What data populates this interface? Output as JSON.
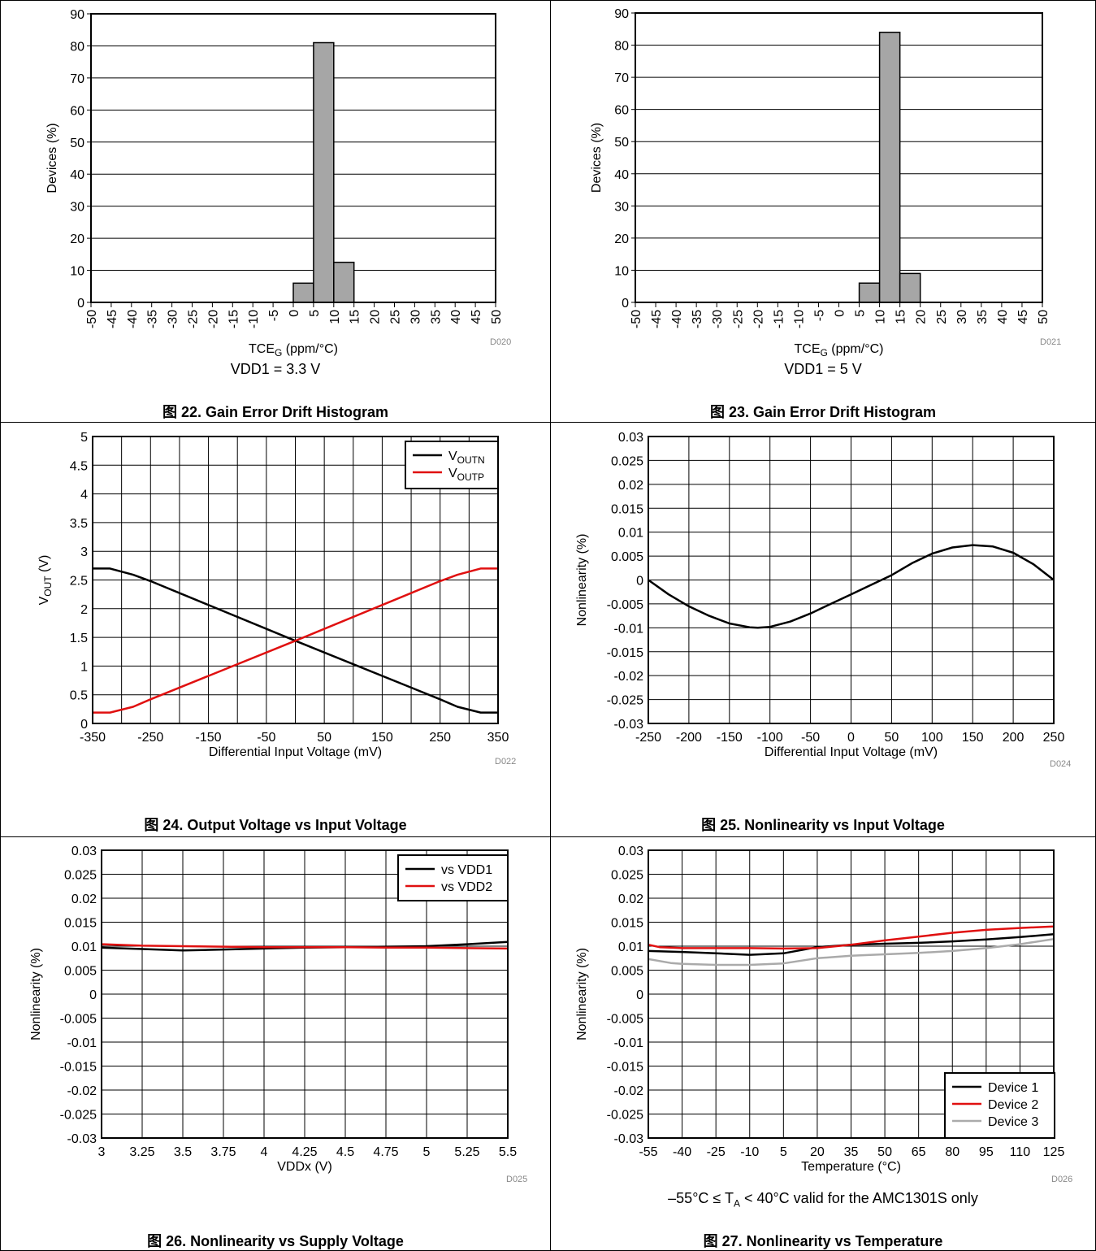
{
  "charts": [
    {
      "id": "fig22",
      "caption": "图 22. Gain Error Drift Histogram",
      "condition": "VDD1 = 3.3 V",
      "code": "D020"
    },
    {
      "id": "fig23",
      "caption": "图 23. Gain Error Drift Histogram",
      "condition": "VDD1 = 5 V",
      "code": "D021"
    },
    {
      "id": "fig24",
      "caption": "图 24. Output Voltage vs Input Voltage",
      "condition": "",
      "code": "D022"
    },
    {
      "id": "fig25",
      "caption": "图 25. Nonlinearity vs Input Voltage",
      "condition": "",
      "code": "D024"
    },
    {
      "id": "fig26",
      "caption": "图 26. Nonlinearity vs Supply Voltage",
      "condition": "",
      "code": "D025"
    },
    {
      "id": "fig27",
      "caption": "图 27. Nonlinearity vs Temperature",
      "condition": "–55°C ≤ T<sub>A</sub> < 40°C valid for the AMC1301S only",
      "condition_text": "–55°C ≤ TA < 40°C valid for the AMC1301S only",
      "code": "D026"
    }
  ],
  "chart_data": [
    {
      "type": "bar",
      "title": "",
      "xlabel": "TCE_G (ppm/°C)",
      "xlabel_main": "TCE",
      "xlabel_sub": "G",
      "xlabel_tail": " (ppm/°C)",
      "ylabel": "Devices (%)",
      "ylim": [
        0,
        90
      ],
      "yticks": [
        0,
        10,
        20,
        30,
        40,
        50,
        60,
        70,
        80,
        90
      ],
      "categories": [
        "-50",
        "-45",
        "-40",
        "-35",
        "-30",
        "-25",
        "-20",
        "-15",
        "-10",
        "-5",
        "0",
        "5",
        "10",
        "15",
        "20",
        "25",
        "30",
        "35",
        "40",
        "45",
        "50"
      ],
      "bins": [
        {
          "from": 0,
          "to": 5,
          "value": 6
        },
        {
          "from": 5,
          "to": 10,
          "value": 81
        },
        {
          "from": 10,
          "to": 15,
          "value": 12.5
        }
      ],
      "grid": "horizontal"
    },
    {
      "type": "bar",
      "title": "",
      "xlabel": "TCE_G (ppm/°C)",
      "xlabel_main": "TCE",
      "xlabel_sub": "G",
      "xlabel_tail": " (ppm/°C)",
      "ylabel": "Devices (%)",
      "ylim": [
        0,
        90
      ],
      "yticks": [
        0,
        10,
        20,
        30,
        40,
        50,
        60,
        70,
        80,
        90
      ],
      "categories": [
        "-50",
        "-45",
        "-40",
        "-35",
        "-30",
        "-25",
        "-20",
        "-15",
        "-10",
        "-5",
        "0",
        "5",
        "10",
        "15",
        "20",
        "25",
        "30",
        "35",
        "40",
        "45",
        "50"
      ],
      "bins": [
        {
          "from": 5,
          "to": 10,
          "value": 6
        },
        {
          "from": 10,
          "to": 15,
          "value": 84
        },
        {
          "from": 15,
          "to": 20,
          "value": 9
        }
      ],
      "grid": "horizontal"
    },
    {
      "type": "line",
      "title": "",
      "xlabel": "Differential Input Voltage (mV)",
      "ylabel": "V_OUT (V)",
      "ylabel_main": "V",
      "ylabel_sub": "OUT",
      "ylabel_tail": " (V)",
      "xlim": [
        -350,
        350
      ],
      "ylim": [
        0,
        5
      ],
      "xticks": [
        -350,
        -250,
        -150,
        -50,
        50,
        150,
        250,
        350
      ],
      "yticks": [
        0,
        0.5,
        1,
        1.5,
        2,
        2.5,
        3,
        3.5,
        4,
        4.5,
        5
      ],
      "xgrid_step": 50,
      "legend": "top-right",
      "series": [
        {
          "name": "V_OUTN",
          "name_main": "V",
          "name_sub": "OUTN",
          "color": "#000000",
          "x": [
            -350,
            -320,
            -280,
            -250,
            0,
            250,
            280,
            320,
            350
          ],
          "y": [
            2.7,
            2.7,
            2.59,
            2.48,
            1.44,
            0.42,
            0.29,
            0.19,
            0.19
          ]
        },
        {
          "name": "V_OUTP",
          "name_main": "V",
          "name_sub": "OUTP",
          "color": "#e01010",
          "x": [
            -350,
            -320,
            -280,
            -250,
            0,
            250,
            280,
            320,
            350
          ],
          "y": [
            0.19,
            0.19,
            0.29,
            0.42,
            1.44,
            2.48,
            2.59,
            2.7,
            2.7
          ]
        }
      ]
    },
    {
      "type": "line",
      "title": "",
      "xlabel": "Differential Input Voltage (mV)",
      "ylabel": "Nonlinearity (%)",
      "xlim": [
        -250,
        250
      ],
      "ylim": [
        -0.03,
        0.03
      ],
      "xticks": [
        -250,
        -200,
        -150,
        -100,
        -50,
        0,
        50,
        100,
        150,
        200,
        250
      ],
      "yticks": [
        -0.03,
        -0.025,
        -0.02,
        -0.015,
        -0.01,
        -0.005,
        0,
        0.005,
        0.01,
        0.015,
        0.02,
        0.025,
        0.03
      ],
      "xgrid_step": 50,
      "legend": "none",
      "series": [
        {
          "name": "",
          "color": "#000000",
          "x": [
            -250,
            -225,
            -200,
            -175,
            -150,
            -125,
            -115,
            -100,
            -75,
            -50,
            -25,
            0,
            25,
            50,
            75,
            100,
            125,
            150,
            175,
            200,
            225,
            250
          ],
          "y": [
            0,
            -0.003,
            -0.0055,
            -0.0075,
            -0.0091,
            -0.0099,
            -0.01,
            -0.0098,
            -0.0087,
            -0.007,
            -0.005,
            -0.003,
            -0.001,
            0.001,
            0.0035,
            0.0055,
            0.0068,
            0.0073,
            0.007,
            0.0057,
            0.0033,
            0
          ]
        }
      ]
    },
    {
      "type": "line",
      "title": "",
      "xlabel": "VDDx (V)",
      "ylabel": "Nonlinearity (%)",
      "xlim": [
        3,
        5.5
      ],
      "ylim": [
        -0.03,
        0.03
      ],
      "xticks": [
        3,
        3.25,
        3.5,
        3.75,
        4,
        4.25,
        4.5,
        4.75,
        5,
        5.25,
        5.5
      ],
      "xticklabels": [
        "3",
        "3.25",
        "3.5",
        "3.75",
        "4",
        "4.25",
        "4.5",
        "4.75",
        "5",
        "5.25",
        "5.5"
      ],
      "yticks": [
        -0.03,
        -0.025,
        -0.02,
        -0.015,
        -0.01,
        -0.005,
        0,
        0.005,
        0.01,
        0.015,
        0.02,
        0.025,
        0.03
      ],
      "xgrid_step": 0.25,
      "legend": "top-right",
      "series": [
        {
          "name": "vs VDD1",
          "color": "#000000",
          "x": [
            3,
            3.25,
            3.5,
            3.75,
            4,
            4.25,
            4.5,
            4.75,
            5,
            5.25,
            5.5
          ],
          "y": [
            0.0097,
            0.0094,
            0.0091,
            0.0093,
            0.0095,
            0.0097,
            0.0098,
            0.0099,
            0.01,
            0.0104,
            0.0109
          ]
        },
        {
          "name": "vs VDD2",
          "color": "#e01010",
          "x": [
            3,
            3.25,
            3.5,
            3.75,
            4,
            4.25,
            4.5,
            4.75,
            5,
            5.25,
            5.5
          ],
          "y": [
            0.0104,
            0.0101,
            0.01,
            0.0099,
            0.0098,
            0.0098,
            0.0098,
            0.0097,
            0.0097,
            0.0096,
            0.0095
          ]
        }
      ]
    },
    {
      "type": "line",
      "title": "",
      "xlabel": "Temperature (°C)",
      "ylabel": "Nonlinearity (%)",
      "xlim": [
        -55,
        125
      ],
      "ylim": [
        -0.03,
        0.03
      ],
      "xticks": [
        -55,
        -40,
        -25,
        -10,
        5,
        20,
        35,
        50,
        65,
        80,
        95,
        110,
        125
      ],
      "yticks": [
        -0.03,
        -0.025,
        -0.02,
        -0.015,
        -0.01,
        -0.005,
        0,
        0.005,
        0.01,
        0.015,
        0.02,
        0.025,
        0.03
      ],
      "xgrid_step": 15,
      "legend": "bottom-right",
      "series": [
        {
          "name": "Device 1",
          "color": "#000000",
          "x": [
            -55,
            -40,
            -25,
            -10,
            5,
            20,
            35,
            50,
            65,
            80,
            95,
            110,
            125
          ],
          "y": [
            0.009,
            0.0088,
            0.0085,
            0.0082,
            0.0085,
            0.0098,
            0.0103,
            0.0105,
            0.0107,
            0.011,
            0.0114,
            0.0119,
            0.0125
          ]
        },
        {
          "name": "Device 2",
          "color": "#e01010",
          "x": [
            -55,
            -50,
            -40,
            -25,
            -10,
            5,
            20,
            35,
            50,
            65,
            80,
            95,
            110,
            125
          ],
          "y": [
            0.0103,
            0.0098,
            0.0096,
            0.0096,
            0.0096,
            0.0095,
            0.0096,
            0.0103,
            0.0112,
            0.012,
            0.0128,
            0.0134,
            0.0138,
            0.0141
          ]
        },
        {
          "name": "Device 3",
          "color": "#aaaaaa",
          "x": [
            -55,
            -45,
            -40,
            -25,
            -10,
            5,
            20,
            35,
            50,
            65,
            80,
            95,
            110,
            125
          ],
          "y": [
            0.0073,
            0.0065,
            0.0063,
            0.0061,
            0.0061,
            0.0064,
            0.0075,
            0.008,
            0.0083,
            0.0086,
            0.009,
            0.0096,
            0.0104,
            0.0115
          ]
        }
      ]
    }
  ]
}
